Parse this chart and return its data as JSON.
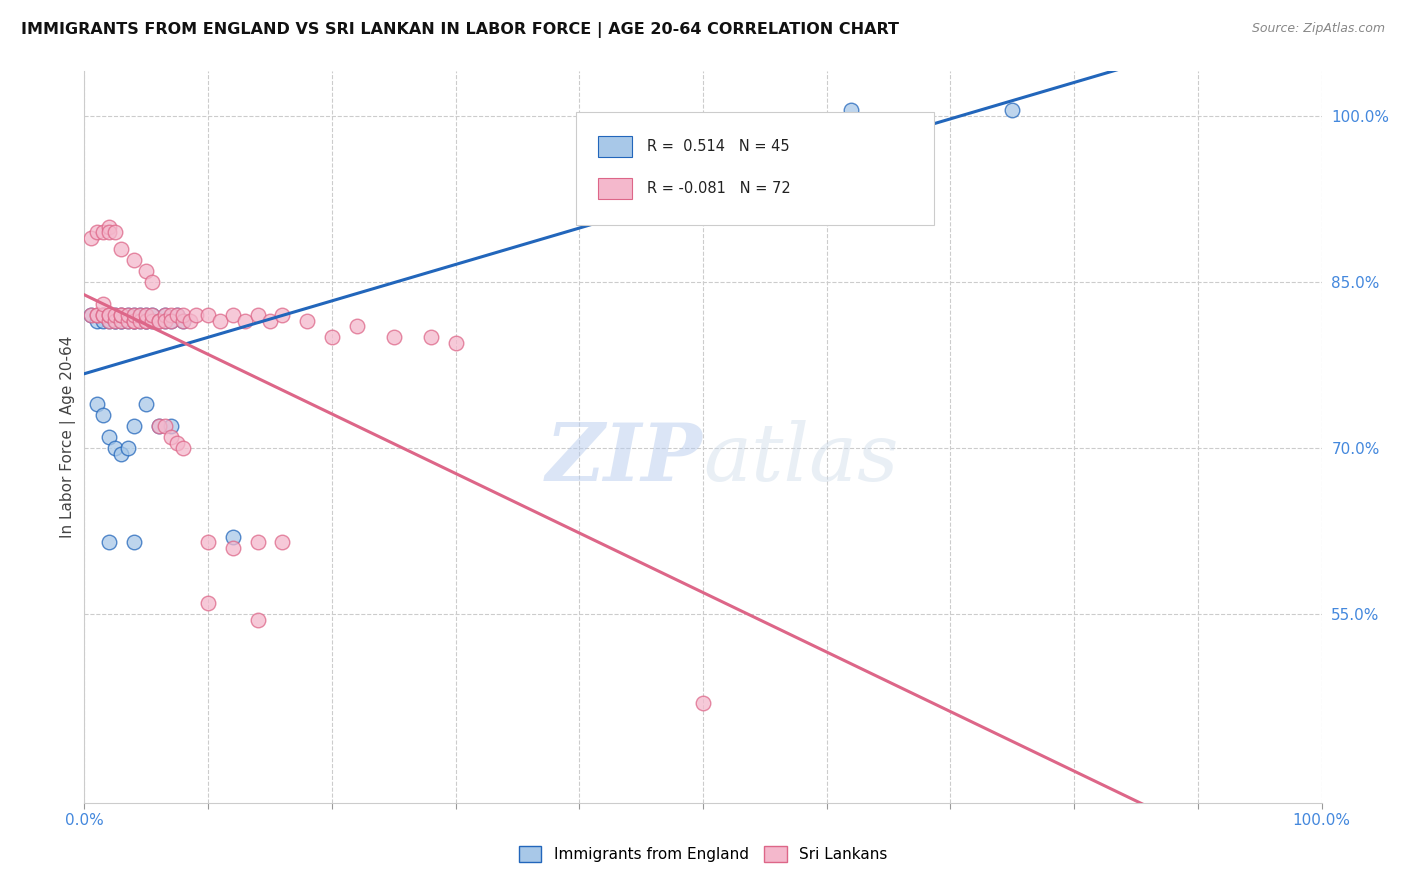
{
  "title": "IMMIGRANTS FROM ENGLAND VS SRI LANKAN IN LABOR FORCE | AGE 20-64 CORRELATION CHART",
  "source": "Source: ZipAtlas.com",
  "ylabel": "In Labor Force | Age 20-64",
  "xlim": [
    0.0,
    1.0
  ],
  "ylim": [
    0.38,
    1.04
  ],
  "ytick_labels_right": [
    "100.0%",
    "85.0%",
    "70.0%",
    "55.0%"
  ],
  "ytick_positions_right": [
    1.0,
    0.85,
    0.7,
    0.55
  ],
  "legend_r_blue": "0.514",
  "legend_n_blue": "45",
  "legend_r_pink": "-0.081",
  "legend_n_pink": "72",
  "legend_label_blue": "Immigrants from England",
  "legend_label_pink": "Sri Lankans",
  "color_blue": "#a8c8e8",
  "color_pink": "#f4b8cc",
  "color_trendline_blue": "#2266bb",
  "color_trendline_pink": "#dd6688",
  "watermark_zip": "ZIP",
  "watermark_atlas": "atlas",
  "blue_x": [
    0.005,
    0.01,
    0.015,
    0.015,
    0.02,
    0.02,
    0.025,
    0.025,
    0.025,
    0.03,
    0.03,
    0.03,
    0.035,
    0.035,
    0.04,
    0.04,
    0.04,
    0.045,
    0.045,
    0.05,
    0.05,
    0.05,
    0.055,
    0.055,
    0.06,
    0.065,
    0.065,
    0.07,
    0.075,
    0.08,
    0.01,
    0.015,
    0.02,
    0.025,
    0.03,
    0.035,
    0.04,
    0.05,
    0.06,
    0.07,
    0.02,
    0.04,
    0.12,
    0.62,
    0.75
  ],
  "blue_y": [
    0.82,
    0.815,
    0.82,
    0.815,
    0.815,
    0.82,
    0.815,
    0.815,
    0.82,
    0.815,
    0.82,
    0.815,
    0.815,
    0.82,
    0.815,
    0.82,
    0.815,
    0.815,
    0.82,
    0.815,
    0.82,
    0.815,
    0.815,
    0.82,
    0.815,
    0.82,
    0.815,
    0.815,
    0.82,
    0.815,
    0.74,
    0.73,
    0.71,
    0.7,
    0.695,
    0.7,
    0.72,
    0.74,
    0.72,
    0.72,
    0.615,
    0.615,
    0.62,
    1.005,
    1.005
  ],
  "pink_x": [
    0.005,
    0.01,
    0.01,
    0.015,
    0.015,
    0.015,
    0.02,
    0.02,
    0.02,
    0.025,
    0.025,
    0.03,
    0.03,
    0.03,
    0.035,
    0.035,
    0.04,
    0.04,
    0.04,
    0.045,
    0.045,
    0.05,
    0.05,
    0.05,
    0.055,
    0.055,
    0.06,
    0.06,
    0.065,
    0.065,
    0.07,
    0.07,
    0.075,
    0.08,
    0.08,
    0.085,
    0.09,
    0.1,
    0.11,
    0.12,
    0.13,
    0.14,
    0.15,
    0.16,
    0.18,
    0.2,
    0.22,
    0.25,
    0.28,
    0.3,
    0.005,
    0.01,
    0.015,
    0.02,
    0.02,
    0.025,
    0.03,
    0.04,
    0.05,
    0.055,
    0.06,
    0.065,
    0.07,
    0.075,
    0.08,
    0.1,
    0.12,
    0.14,
    0.16,
    0.5,
    0.1,
    0.14
  ],
  "pink_y": [
    0.82,
    0.82,
    0.82,
    0.82,
    0.82,
    0.83,
    0.815,
    0.82,
    0.82,
    0.815,
    0.82,
    0.815,
    0.82,
    0.82,
    0.815,
    0.82,
    0.815,
    0.815,
    0.82,
    0.815,
    0.82,
    0.815,
    0.815,
    0.82,
    0.815,
    0.82,
    0.815,
    0.815,
    0.82,
    0.815,
    0.82,
    0.815,
    0.82,
    0.815,
    0.82,
    0.815,
    0.82,
    0.82,
    0.815,
    0.82,
    0.815,
    0.82,
    0.815,
    0.82,
    0.815,
    0.8,
    0.81,
    0.8,
    0.8,
    0.795,
    0.89,
    0.895,
    0.895,
    0.9,
    0.895,
    0.895,
    0.88,
    0.87,
    0.86,
    0.85,
    0.72,
    0.72,
    0.71,
    0.705,
    0.7,
    0.615,
    0.61,
    0.615,
    0.615,
    0.47,
    0.56,
    0.545
  ]
}
